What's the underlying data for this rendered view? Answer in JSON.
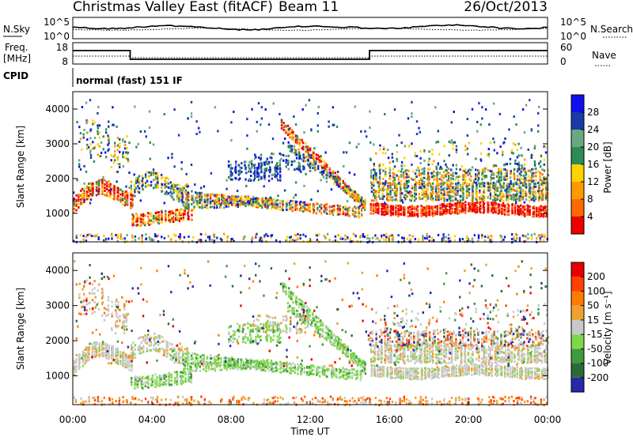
{
  "header": {
    "site": "Christmas Valley East (fitACF)",
    "beam": "Beam 11",
    "date": "26/Oct/2013"
  },
  "status_panel": {
    "nsky_label": "N.Sky",
    "nsky_ticks": [
      "10^5",
      "10^0"
    ],
    "nsearch_label": "N.Search",
    "nsearch_ticks": [
      "10^5",
      "10^0"
    ],
    "freq_label_1": "Freq.",
    "freq_label_2": "[MHz]",
    "freq_ticks": [
      "18",
      "8"
    ],
    "nave_label": "Nave",
    "nave_ticks": [
      "60",
      "0"
    ],
    "cpid_label": "CPID",
    "cpid_value": "normal (fast) 151 IF"
  },
  "chart_data": [
    {
      "type": "heatmap",
      "name": "power",
      "ylabel": "Slant Range [km]",
      "xlabel": "Time UT",
      "ylim": [
        180,
        4500
      ],
      "yticks": [
        "1000",
        "2000",
        "3000",
        "4000"
      ],
      "colorbar": {
        "label": "Power [dB]",
        "ticks": [
          "28",
          "24",
          "20",
          "16",
          "12",
          "8",
          "4"
        ],
        "colors": [
          "#ee0000",
          "#ff6a00",
          "#ff9a00",
          "#ffd200",
          "#2f8a55",
          "#6aa882",
          "#1a3aa8",
          "#1010ee"
        ]
      }
    },
    {
      "type": "heatmap",
      "name": "velocity",
      "ylabel": "Slant Range [km]",
      "xlabel": "Time UT",
      "ylim": [
        180,
        4500
      ],
      "yticks": [
        "1000",
        "2000",
        "3000",
        "4000"
      ],
      "colorbar": {
        "label": "Velocity [m s⁻¹]",
        "ticks": [
          "200",
          "100",
          "50",
          "15",
          "-15",
          "-50",
          "-100",
          "-200"
        ],
        "colors": [
          "#2828aa",
          "#2a6a3a",
          "#3e9a3e",
          "#7ed84a",
          "#c8c8c8",
          "#f0a030",
          "#ff7a00",
          "#ff4000",
          "#e80000"
        ]
      }
    }
  ],
  "time_axis": {
    "label": "Time UT",
    "ticks": [
      "00:00",
      "04:00",
      "08:00",
      "12:00",
      "16:00",
      "20:00",
      "00:00"
    ]
  }
}
